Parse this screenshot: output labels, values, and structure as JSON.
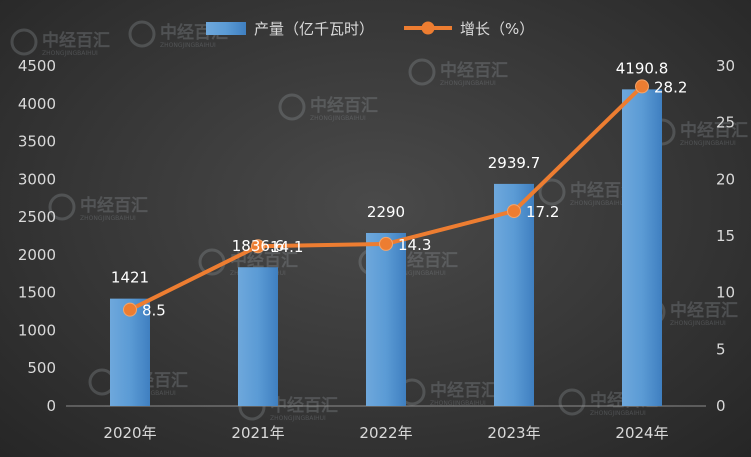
{
  "chart_data": {
    "type": "bar",
    "categories": [
      "2020年",
      "2021年",
      "2022年",
      "2023年",
      "2024年"
    ],
    "series": [
      {
        "name": "产量（亿千瓦时）",
        "type": "bar",
        "axis": "left",
        "values": [
          1421,
          1836.6,
          2290,
          2939.7,
          4190.8
        ],
        "labels": [
          "1421",
          "1836.6",
          "2290",
          "2939.7",
          "4190.8"
        ],
        "color": "#5b9bd5"
      },
      {
        "name": "增长（%）",
        "type": "line",
        "axis": "right",
        "values": [
          8.5,
          14.1,
          14.3,
          17.2,
          28.2
        ],
        "labels": [
          "8.5",
          "14.1",
          "14.3",
          "17.2",
          "28.2"
        ],
        "color": "#ed7d31"
      }
    ],
    "y_left": {
      "lim": [
        0,
        4500
      ],
      "ticks": [
        "0",
        "500",
        "1000",
        "1500",
        "2000",
        "2500",
        "3000",
        "3500",
        "4000",
        "4500"
      ]
    },
    "y_right": {
      "lim": [
        0,
        30
      ],
      "ticks": [
        "0",
        "5",
        "10",
        "15",
        "20",
        "25",
        "30"
      ]
    },
    "grid": false,
    "legend": "top-center"
  },
  "watermark": {
    "text": "中经百汇",
    "subtext": "ZHONGJINGBAIHUI"
  }
}
